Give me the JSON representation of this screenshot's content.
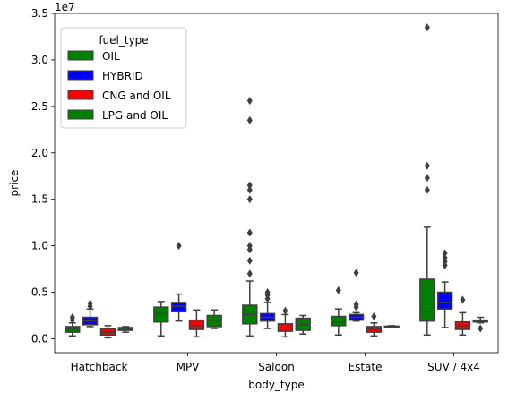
{
  "chart_data": {
    "type": "box",
    "title": "",
    "xlabel": "body_type",
    "ylabel": "price",
    "y_offset_label": "1e7",
    "ylim": [
      -1.5,
      35
    ],
    "yticks": [
      0.0,
      0.5,
      1.0,
      1.5,
      2.0,
      2.5,
      3.0,
      3.5
    ],
    "ytick_labels": [
      "0.0",
      "0.5",
      "1.0",
      "1.5",
      "2.0",
      "2.5",
      "3.0",
      "3.5"
    ],
    "y_units_note": "values in units of 1e6 (tick label units x 10 = value shown); axis multiplier 1e7",
    "categories": [
      "Hatchback",
      "MPV",
      "Saloon",
      "Estate",
      "SUV / 4x4"
    ],
    "legend": {
      "title": "fuel_type",
      "location": "upper-left",
      "entries": [
        "OIL",
        "HYBRID",
        "CNG and OIL",
        "LPG and OIL"
      ]
    },
    "series": [
      {
        "name": "OIL",
        "color": "#008000",
        "boxes": [
          {
            "category": "Hatchback",
            "whisker_low": 0.3,
            "q1": 0.7,
            "median": 1.0,
            "q3": 1.3,
            "whisker_high": 1.7,
            "outliers": [
              2.0,
              2.3
            ]
          },
          {
            "category": "MPV",
            "whisker_low": 0.3,
            "q1": 1.8,
            "median": 2.7,
            "q3": 3.4,
            "whisker_high": 4.0,
            "outliers": []
          },
          {
            "category": "Saloon",
            "whisker_low": 0.3,
            "q1": 1.6,
            "median": 2.6,
            "q3": 3.6,
            "whisker_high": 6.2,
            "outliers": [
              7.0,
              8.4,
              9.6,
              10.0,
              11.4,
              15.0,
              16.0,
              16.5,
              23.5,
              25.6
            ]
          },
          {
            "category": "Estate",
            "whisker_low": 0.4,
            "q1": 1.4,
            "median": 1.8,
            "q3": 2.4,
            "whisker_high": 3.2,
            "outliers": [
              5.2
            ]
          },
          {
            "category": "SUV / 4x4",
            "whisker_low": 0.4,
            "q1": 1.9,
            "median": 2.9,
            "q3": 6.4,
            "whisker_high": 12.0,
            "outliers": [
              16.0,
              17.3,
              18.6,
              33.5
            ]
          }
        ]
      },
      {
        "name": "HYBRID",
        "color": "#0000ff",
        "boxes": [
          {
            "category": "Hatchback",
            "whisker_low": 1.3,
            "q1": 1.5,
            "median": 1.9,
            "q3": 2.3,
            "whisker_high": 3.2,
            "outliers": [
              3.5,
              3.8
            ]
          },
          {
            "category": "MPV",
            "whisker_low": 1.9,
            "q1": 2.9,
            "median": 3.5,
            "q3": 3.9,
            "whisker_high": 4.8,
            "outliers": [
              10.0
            ]
          },
          {
            "category": "Saloon",
            "whisker_low": 1.1,
            "q1": 1.9,
            "median": 2.3,
            "q3": 2.7,
            "whisker_high": 3.9,
            "outliers": [
              4.3,
              4.7,
              5.0
            ]
          },
          {
            "category": "Estate",
            "whisker_low": 1.9,
            "q1": 2.0,
            "median": 2.3,
            "q3": 2.6,
            "whisker_high": 2.8,
            "outliers": [
              3.4,
              3.7,
              7.1
            ]
          },
          {
            "category": "SUV / 4x4",
            "whisker_low": 1.2,
            "q1": 3.2,
            "median": 3.9,
            "q3": 5.0,
            "whisker_high": 6.1,
            "outliers": [
              7.9,
              8.3,
              8.7,
              9.2
            ]
          }
        ]
      },
      {
        "name": "CNG and OIL",
        "color": "#ff0000",
        "boxes": [
          {
            "category": "Hatchback",
            "whisker_low": 0.1,
            "q1": 0.4,
            "median": 0.7,
            "q3": 1.1,
            "whisker_high": 1.4,
            "outliers": []
          },
          {
            "category": "MPV",
            "whisker_low": 0.2,
            "q1": 1.0,
            "median": 1.4,
            "q3": 2.0,
            "whisker_high": 3.1,
            "outliers": []
          },
          {
            "category": "Saloon",
            "whisker_low": 0.2,
            "q1": 0.8,
            "median": 1.2,
            "q3": 1.6,
            "whisker_high": 2.6,
            "outliers": [
              3.0
            ]
          },
          {
            "category": "Estate",
            "whisker_low": 0.3,
            "q1": 0.7,
            "median": 1.0,
            "q3": 1.3,
            "whisker_high": 1.7,
            "outliers": [
              2.4
            ]
          },
          {
            "category": "SUV / 4x4",
            "whisker_low": 0.4,
            "q1": 1.0,
            "median": 1.4,
            "q3": 1.8,
            "whisker_high": 2.8,
            "outliers": [
              4.2
            ]
          }
        ]
      },
      {
        "name": "LPG and OIL",
        "color": "#008000",
        "boxes": [
          {
            "category": "Hatchback",
            "whisker_low": 0.7,
            "q1": 0.9,
            "median": 1.0,
            "q3": 1.2,
            "whisker_high": 1.3,
            "outliers": []
          },
          {
            "category": "MPV",
            "whisker_low": 1.1,
            "q1": 1.3,
            "median": 2.0,
            "q3": 2.5,
            "whisker_high": 3.1,
            "outliers": []
          },
          {
            "category": "Saloon",
            "whisker_low": 0.5,
            "q1": 0.9,
            "median": 1.5,
            "q3": 2.2,
            "whisker_high": 2.5,
            "outliers": []
          },
          {
            "category": "Estate",
            "whisker_low": 1.2,
            "q1": 1.25,
            "median": 1.3,
            "q3": 1.35,
            "whisker_high": 1.4,
            "outliers": []
          },
          {
            "category": "SUV / 4x4",
            "whisker_low": 1.7,
            "q1": 1.8,
            "median": 1.9,
            "q3": 2.0,
            "whisker_high": 2.3,
            "outliers": [
              1.1
            ]
          }
        ]
      }
    ]
  }
}
